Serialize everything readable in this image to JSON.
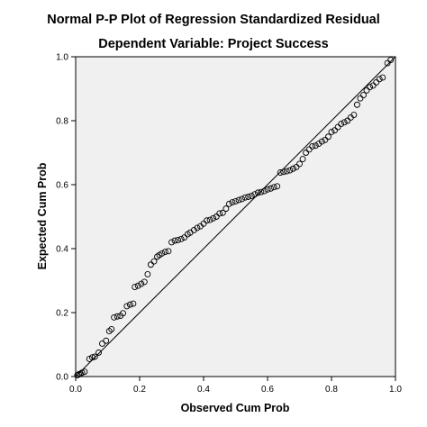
{
  "chart_data": {
    "type": "scatter",
    "title": "Normal P-P Plot of Regression Standardized Residual",
    "subtitle": "Dependent Variable: Project Success",
    "xlabel": "Observed Cum Prob",
    "ylabel": "Expected Cum Prob",
    "xlim": [
      0,
      1
    ],
    "ylim": [
      0,
      1
    ],
    "xticks": [
      0.0,
      0.2,
      0.4,
      0.6,
      0.8,
      1.0
    ],
    "yticks": [
      0.0,
      0.2,
      0.4,
      0.6,
      0.8,
      1.0
    ],
    "x_tick_labels": [
      "0.0",
      "0.2",
      "0.4",
      "0.6",
      "0.8",
      "1.0"
    ],
    "y_tick_labels": [
      "0.0",
      "0.2",
      "0.4",
      "0.6",
      "0.8",
      "1.0"
    ],
    "grid": false,
    "reference_line": [
      [
        0,
        0
      ],
      [
        1,
        1
      ]
    ],
    "colors": {
      "plot_background": "#f0f0f0",
      "markers": "#000000",
      "line": "#000000"
    },
    "points": [
      [
        0.005,
        0.004
      ],
      [
        0.01,
        0.007
      ],
      [
        0.015,
        0.009
      ],
      [
        0.02,
        0.012
      ],
      [
        0.028,
        0.015
      ],
      [
        0.043,
        0.055
      ],
      [
        0.052,
        0.06
      ],
      [
        0.06,
        0.062
      ],
      [
        0.072,
        0.075
      ],
      [
        0.083,
        0.103
      ],
      [
        0.095,
        0.112
      ],
      [
        0.105,
        0.142
      ],
      [
        0.112,
        0.148
      ],
      [
        0.12,
        0.185
      ],
      [
        0.13,
        0.188
      ],
      [
        0.14,
        0.19
      ],
      [
        0.148,
        0.198
      ],
      [
        0.16,
        0.22
      ],
      [
        0.17,
        0.225
      ],
      [
        0.18,
        0.228
      ],
      [
        0.185,
        0.28
      ],
      [
        0.195,
        0.284
      ],
      [
        0.205,
        0.29
      ],
      [
        0.215,
        0.296
      ],
      [
        0.225,
        0.32
      ],
      [
        0.235,
        0.35
      ],
      [
        0.245,
        0.36
      ],
      [
        0.255,
        0.375
      ],
      [
        0.262,
        0.38
      ],
      [
        0.27,
        0.385
      ],
      [
        0.28,
        0.39
      ],
      [
        0.29,
        0.392
      ],
      [
        0.3,
        0.42
      ],
      [
        0.31,
        0.425
      ],
      [
        0.32,
        0.427
      ],
      [
        0.33,
        0.43
      ],
      [
        0.34,
        0.435
      ],
      [
        0.35,
        0.445
      ],
      [
        0.358,
        0.45
      ],
      [
        0.37,
        0.458
      ],
      [
        0.38,
        0.465
      ],
      [
        0.39,
        0.47
      ],
      [
        0.4,
        0.478
      ],
      [
        0.41,
        0.488
      ],
      [
        0.42,
        0.49
      ],
      [
        0.43,
        0.495
      ],
      [
        0.44,
        0.5
      ],
      [
        0.45,
        0.51
      ],
      [
        0.46,
        0.512
      ],
      [
        0.47,
        0.525
      ],
      [
        0.48,
        0.54
      ],
      [
        0.49,
        0.545
      ],
      [
        0.5,
        0.548
      ],
      [
        0.51,
        0.552
      ],
      [
        0.52,
        0.555
      ],
      [
        0.53,
        0.56
      ],
      [
        0.54,
        0.562
      ],
      [
        0.55,
        0.565
      ],
      [
        0.56,
        0.57
      ],
      [
        0.57,
        0.575
      ],
      [
        0.58,
        0.577
      ],
      [
        0.59,
        0.58
      ],
      [
        0.6,
        0.585
      ],
      [
        0.61,
        0.588
      ],
      [
        0.62,
        0.592
      ],
      [
        0.63,
        0.595
      ],
      [
        0.64,
        0.638
      ],
      [
        0.65,
        0.64
      ],
      [
        0.66,
        0.642
      ],
      [
        0.67,
        0.645
      ],
      [
        0.68,
        0.65
      ],
      [
        0.69,
        0.655
      ],
      [
        0.7,
        0.665
      ],
      [
        0.71,
        0.68
      ],
      [
        0.72,
        0.7
      ],
      [
        0.73,
        0.71
      ],
      [
        0.74,
        0.72
      ],
      [
        0.75,
        0.722
      ],
      [
        0.76,
        0.728
      ],
      [
        0.77,
        0.735
      ],
      [
        0.78,
        0.74
      ],
      [
        0.79,
        0.75
      ],
      [
        0.8,
        0.765
      ],
      [
        0.81,
        0.77
      ],
      [
        0.82,
        0.78
      ],
      [
        0.83,
        0.79
      ],
      [
        0.84,
        0.795
      ],
      [
        0.85,
        0.8
      ],
      [
        0.86,
        0.81
      ],
      [
        0.87,
        0.818
      ],
      [
        0.88,
        0.85
      ],
      [
        0.89,
        0.87
      ],
      [
        0.9,
        0.88
      ],
      [
        0.91,
        0.895
      ],
      [
        0.92,
        0.905
      ],
      [
        0.93,
        0.91
      ],
      [
        0.94,
        0.92
      ],
      [
        0.95,
        0.93
      ],
      [
        0.96,
        0.935
      ],
      [
        0.975,
        0.98
      ],
      [
        0.985,
        0.99
      ]
    ]
  }
}
